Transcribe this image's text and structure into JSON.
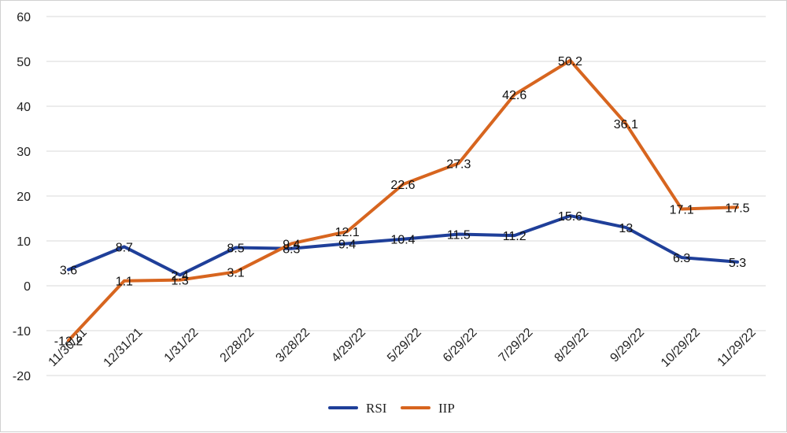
{
  "chart_data": {
    "type": "line",
    "title": "",
    "xlabel": "",
    "ylabel": "",
    "categories": [
      "11/30/21",
      "12/31/21",
      "1/31/22",
      "2/28/22",
      "3/28/22",
      "4/29/22",
      "5/29/22",
      "6/29/22",
      "7/29/22",
      "8/29/22",
      "9/29/22",
      "10/29/22",
      "11/29/22"
    ],
    "ylim": [
      -20,
      60
    ],
    "yticks": [
      -20,
      -10,
      0,
      10,
      20,
      30,
      40,
      50,
      60
    ],
    "grid": true,
    "legend_position": "bottom",
    "series": [
      {
        "name": "RSI",
        "color": "#1f3f99",
        "values": [
          3.6,
          8.7,
          2.4,
          8.5,
          8.3,
          9.4,
          10.4,
          11.5,
          11.2,
          15.6,
          13,
          6.3,
          5.3
        ],
        "labels": [
          "3.6",
          "8.7",
          "2.4",
          "8.5",
          "8.3",
          "9.4",
          "10.4",
          "11.5",
          "11.2",
          "15.6",
          "13",
          "6.3",
          "5.3"
        ]
      },
      {
        "name": "IIP",
        "color": "#d7651f",
        "values": [
          -12.2,
          1.1,
          1.3,
          3.1,
          9.4,
          12.1,
          22.6,
          27.3,
          42.6,
          50.2,
          36.1,
          17.1,
          17.5
        ],
        "labels": [
          "-12.2",
          "1.1",
          "1.3",
          "3.1",
          "9.4",
          "12.1",
          "22.6",
          "27.3",
          "42.6",
          "50.2",
          "36.1",
          "17.1",
          "17.5"
        ]
      }
    ]
  }
}
